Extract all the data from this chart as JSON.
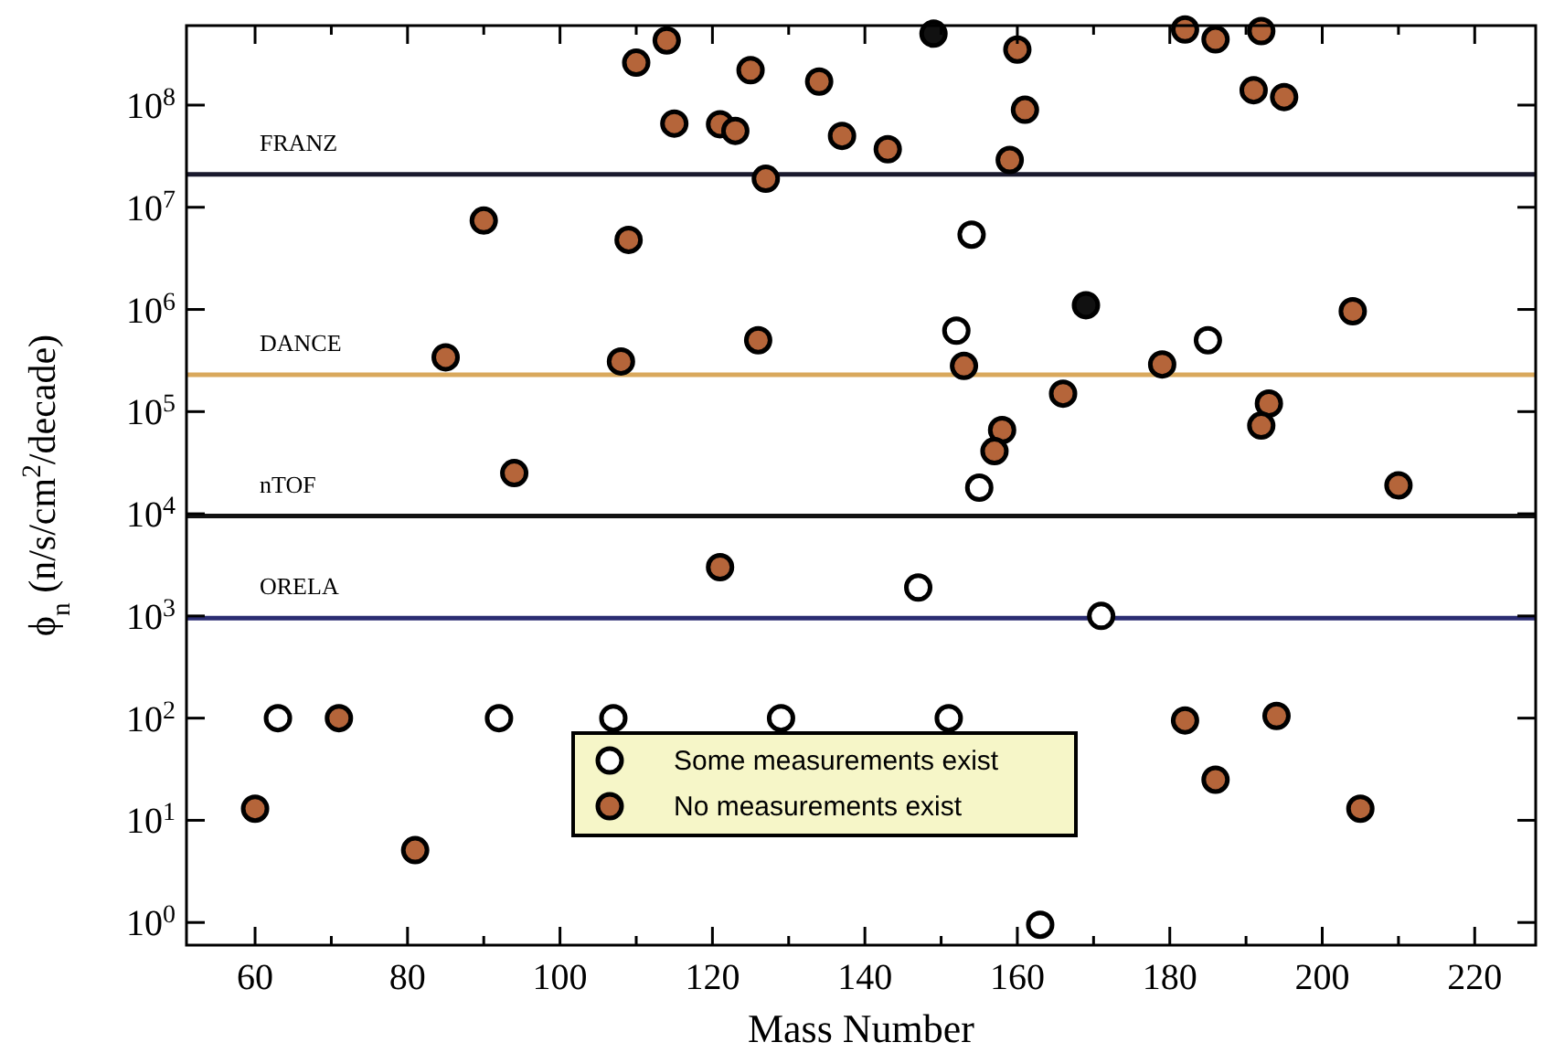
{
  "chart_data": {
    "type": "scatter",
    "xlabel": "Mass Number",
    "ylabel": "ϕ$_{n}$  (n/s/cm$^{2}$/decade)",
    "log": "y",
    "marker": "circle",
    "legend": "bottom",
    "grid": false,
    "xlim": [
      51,
      228
    ],
    "ylim": [
      0.6,
      600000000.0
    ],
    "xticks": [
      60,
      {
        "value": 70,
        "label": null
      },
      80,
      {
        "value": 90,
        "label": null
      },
      100,
      {
        "value": 110,
        "label": null
      },
      120,
      {
        "value": 130,
        "label": null
      },
      140,
      {
        "value": 150,
        "label": null
      },
      160,
      {
        "value": 170,
        "label": null
      },
      180,
      {
        "value": 190,
        "label": null
      },
      200,
      {
        "value": 210,
        "label": null
      },
      220
    ],
    "yticks": [
      {
        "value": 1,
        "label": "10$^{0}$"
      },
      {
        "value": 10,
        "label": "10$^{1}$"
      },
      {
        "value": 100,
        "label": "10$^{2}$"
      },
      {
        "value": 1000,
        "label": "10$^{3}$"
      },
      {
        "value": 10000,
        "label": "10$^{4}$"
      },
      {
        "value": 100000,
        "label": "10$^{5}$"
      },
      {
        "value": 1000000,
        "label": "10$^{6}$"
      },
      {
        "value": 10000000,
        "label": "10$^{7}$"
      },
      {
        "value": 100000000,
        "label": "10$^{8}$"
      }
    ],
    "ref_lines": [
      {
        "axis": "y",
        "value": 21000000.0,
        "label": "FRANZ",
        "color": "#1a1a2e"
      },
      {
        "axis": "y",
        "value": 230000.0,
        "label": "DANCE",
        "color": "#d9a85c"
      },
      {
        "axis": "y",
        "value": 9500,
        "label": "nTOF",
        "color": "#111111"
      },
      {
        "axis": "y",
        "value": 950,
        "label": "ORELA",
        "color": "#2b2d72"
      }
    ],
    "series": [
      {
        "name": "Some measurements exist",
        "color": "#ffffff",
        "x": [
          63,
          92,
          107,
          129,
          151,
          147,
          171,
          163,
          154,
          152,
          185,
          155
        ],
        "values": [
          100,
          100,
          100,
          100,
          100,
          1900,
          1000,
          0.95,
          5400000.0,
          620000.0,
          500000.0,
          18000.0
        ]
      },
      {
        "name": "No measurements exist",
        "color": "#b5653a",
        "x": [
          90,
          109,
          85,
          108,
          94,
          110,
          114,
          125,
          134,
          115,
          121,
          123,
          137,
          143,
          127,
          159,
          160,
          161,
          182,
          186,
          192,
          191,
          195,
          126,
          153,
          179,
          166,
          193,
          192,
          158,
          157,
          204,
          210,
          121,
          71,
          60,
          81,
          182,
          194,
          186,
          205
        ],
        "values": [
          7400000.0,
          4800000.0,
          340000.0,
          310000.0,
          25000.0,
          260000000.0,
          430000000.0,
          220000000.0,
          170000000.0,
          66000000.0,
          65000000.0,
          56000000.0,
          50000000.0,
          37000000.0,
          19000000.0,
          29000000.0,
          350000000.0,
          90000000.0,
          550000000.0,
          440000000.0,
          530000000.0,
          140000000.0,
          120000000.0,
          500000.0,
          280000.0,
          290000.0,
          150000.0,
          120000.0,
          73000.0,
          66000.0,
          41000.0,
          960000.0,
          19000.0,
          3000,
          100,
          13,
          5.1,
          95,
          105,
          25,
          13
        ]
      },
      {
        "color": "#111111",
        "x": [
          149,
          169
        ],
        "values": [
          500000000.0,
          1100000.0
        ]
      }
    ]
  }
}
